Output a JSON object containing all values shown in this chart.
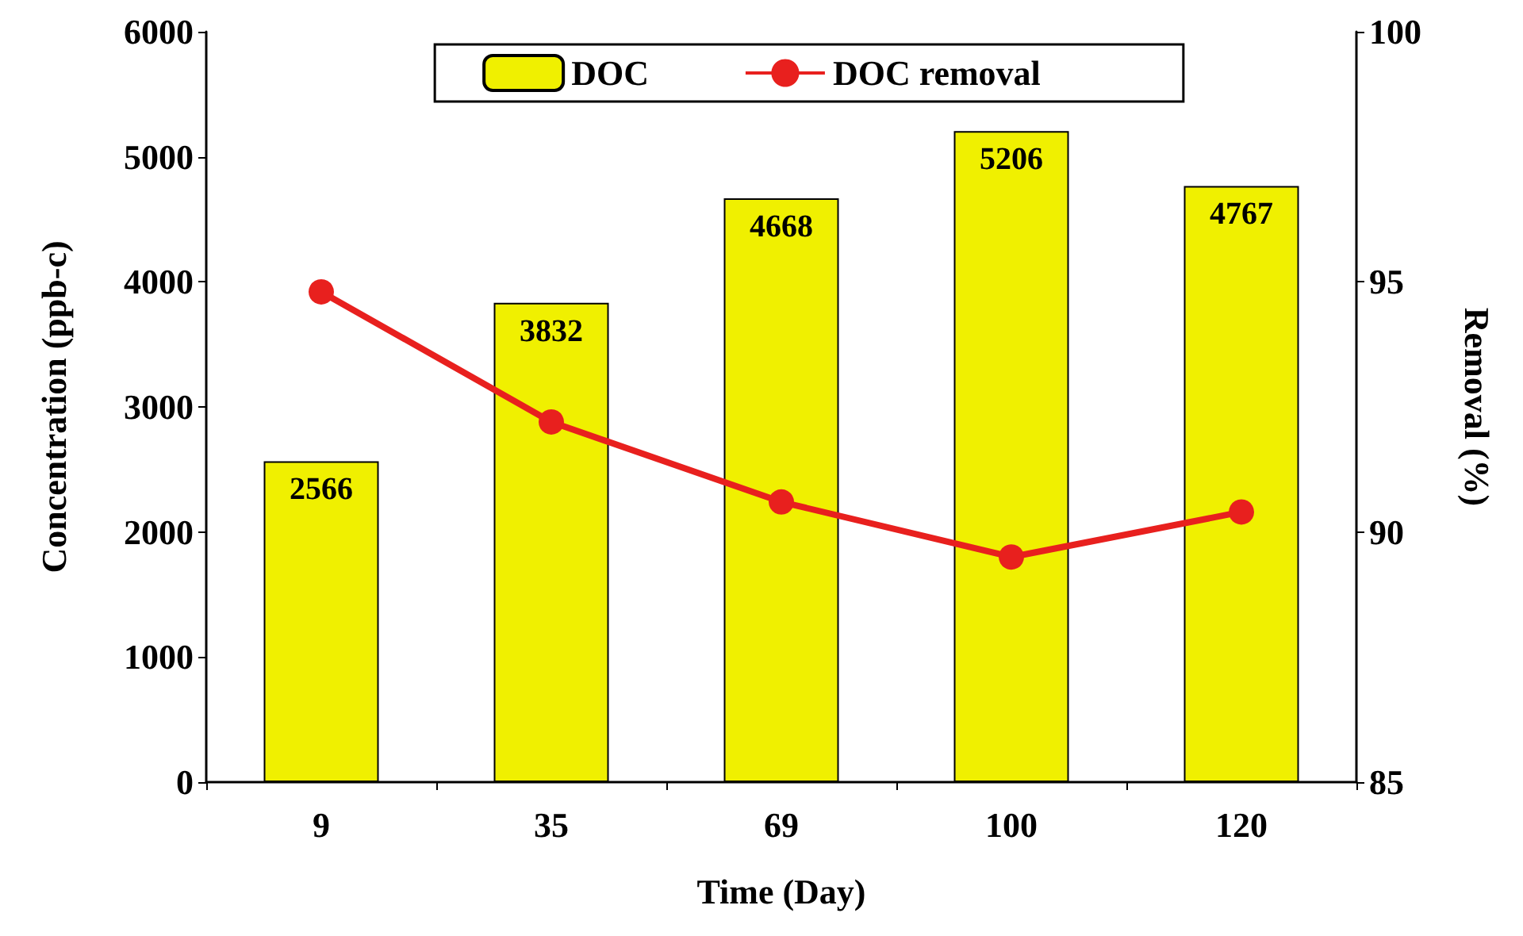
{
  "chart_data": {
    "type": "bar",
    "xlabel": "Time (Day)",
    "ylabel": "Concentration (ppb-c)",
    "y2label": "Removal (%)",
    "categories": [
      "9",
      "35",
      "69",
      "100",
      "120"
    ],
    "series": [
      {
        "name": "DOC",
        "color": "#f0f000",
        "values": [
          2566,
          3832,
          4668,
          5206,
          4767
        ],
        "data_labels": true
      },
      {
        "name": "DOC removal",
        "type": "line",
        "axis": "y2",
        "color": "#e8201e",
        "marker": "circle",
        "values": [
          94.8,
          92.2,
          90.6,
          89.5,
          90.4
        ]
      }
    ],
    "ylim": [
      0,
      6000
    ],
    "yticks": [
      0,
      1000,
      2000,
      3000,
      4000,
      5000,
      6000
    ],
    "y2lim": [
      85,
      100
    ],
    "y2ticks": [
      85,
      90,
      95,
      100
    ],
    "legend": "top",
    "grid": false
  }
}
